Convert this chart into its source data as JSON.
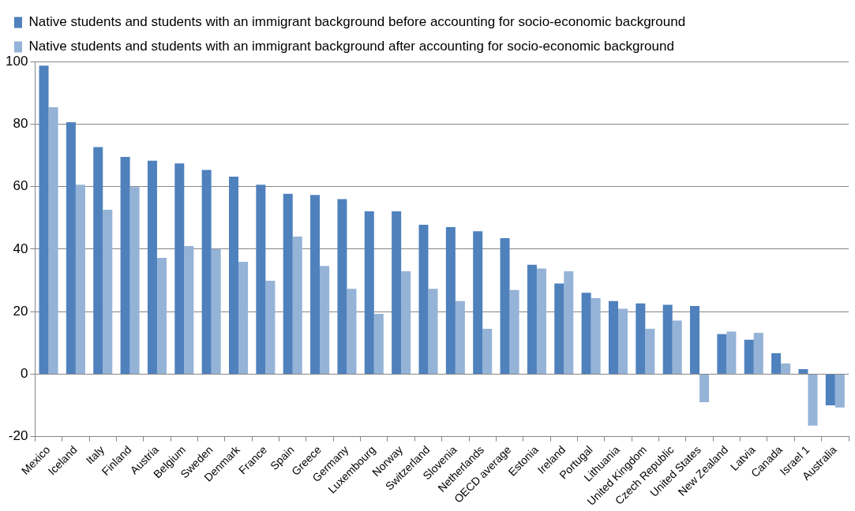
{
  "chart_data": {
    "type": "bar",
    "categories": [
      "Mexico",
      "Iceland",
      "Italy",
      "Finland",
      "Austria",
      "Belgium",
      "Sweden",
      "Denmark",
      "France",
      "Spain",
      "Greece",
      "Germany",
      "Luxembourg",
      "Norway",
      "Switzerland",
      "Slovenia",
      "Netherlands",
      "OECD average",
      "Estonia",
      "Ireland",
      "Portugal",
      "Lithuania",
      "United Kingdom",
      "Czech Republic",
      "United States",
      "New Zealand",
      "Latvia",
      "Canada",
      "Israel 1",
      "Australia"
    ],
    "series": [
      {
        "name": "Native students and students with an immigrant background before accounting for socio-economic background",
        "color": "#4f81bd",
        "values": [
          98.7,
          80.6,
          72.6,
          69.5,
          68.3,
          67.4,
          65.3,
          63.2,
          60.6,
          57.7,
          57.3,
          56,
          52.1,
          52.1,
          47.8,
          47,
          45.7,
          43.5,
          35,
          29,
          26,
          23.4,
          22.6,
          22.2,
          21.8,
          12.8,
          11,
          6.7,
          1.6,
          -10
        ]
      },
      {
        "name": "Native students and students with an immigrant background after accounting for socio-economic background",
        "color": "#95b3d7",
        "values": [
          85.4,
          60.6,
          52.6,
          59.8,
          37.2,
          41,
          40,
          35.9,
          29.9,
          44,
          34.6,
          27.3,
          19.3,
          32.9,
          27.3,
          23.4,
          14.5,
          26.9,
          33.8,
          32.9,
          24.3,
          20.9,
          14.5,
          17.1,
          -9,
          13.6,
          13.2,
          3.4,
          -16.5,
          -10.7
        ]
      }
    ],
    "ylim": [
      -20,
      100
    ],
    "yticks": [
      -20,
      0,
      20,
      40,
      60,
      80,
      100
    ],
    "grid": "y",
    "legend": "top left"
  }
}
